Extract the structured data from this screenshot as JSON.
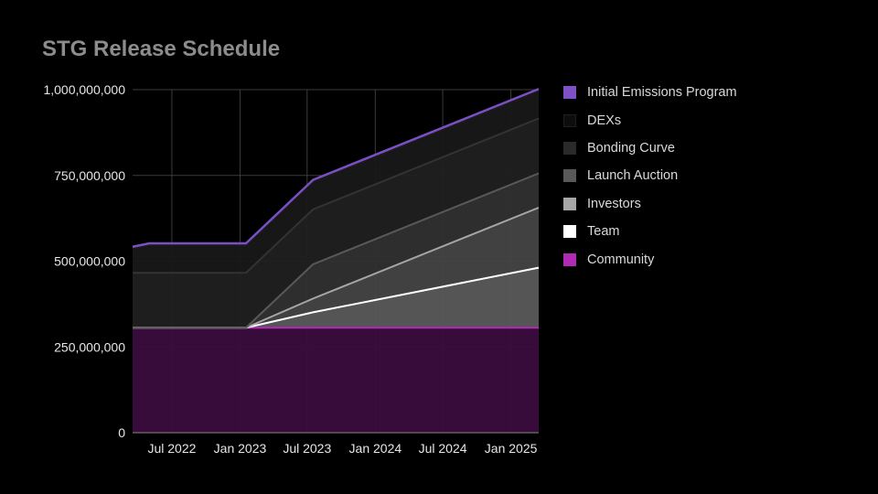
{
  "chart_data": {
    "type": "area",
    "stacked": true,
    "title": "STG Release Schedule",
    "xlabel": "",
    "ylabel": "",
    "x_start": "2022-03-17",
    "x_end": "2025-03-17",
    "x_ticks": [
      {
        "date": "2022-07-01",
        "label": "Jul 2022"
      },
      {
        "date": "2023-01-01",
        "label": "Jan 2023"
      },
      {
        "date": "2023-07-01",
        "label": "Jul 2023"
      },
      {
        "date": "2024-01-01",
        "label": "Jan 2024"
      },
      {
        "date": "2024-07-01",
        "label": "Jul 2024"
      },
      {
        "date": "2025-01-01",
        "label": "Jan 2025"
      }
    ],
    "ylim": [
      0,
      1000000000
    ],
    "y_ticks": [
      {
        "value": 0,
        "label": "0"
      },
      {
        "value": 250000000,
        "label": "250,000,000"
      },
      {
        "value": 500000000,
        "label": "500,000,000"
      },
      {
        "value": 750000000,
        "label": "750,000,000"
      },
      {
        "value": 1000000000,
        "label": "1,000,000,000"
      }
    ],
    "grid": true,
    "legend_position": "right",
    "x": [
      "2022-03-17",
      "2022-05-01",
      "2023-01-17",
      "2023-07-17",
      "2025-03-17"
    ],
    "series": [
      {
        "name": "Community",
        "color": "#3a0d3e",
        "line_color": "#b02ab3",
        "values": [
          306000000,
          306000000,
          306000000,
          306000000,
          306000000
        ]
      },
      {
        "name": "Team",
        "color": "#5a5a5a",
        "line_color": "#ffffff",
        "values": [
          0,
          0,
          0,
          45000000,
          175000000
        ]
      },
      {
        "name": "Investors",
        "color": "#444444",
        "line_color": "#a6a6a6",
        "values": [
          0,
          0,
          0,
          40000000,
          175000000
        ]
      },
      {
        "name": "Launch Auction",
        "color": "#303030",
        "line_color": "#595959",
        "values": [
          0,
          0,
          0,
          100000000,
          100000000
        ]
      },
      {
        "name": "Bonding Curve",
        "color": "#202020",
        "line_color": "#333333",
        "values": [
          160000000,
          160000000,
          160000000,
          160000000,
          160000000
        ]
      },
      {
        "name": "DEXs",
        "color": "#181818",
        "line_color": "#1a1a1a",
        "values": [
          70000000,
          80000000,
          80000000,
          80000000,
          80000000
        ]
      },
      {
        "name": "Initial Emissions Program",
        "color": "#2a1f3c",
        "line_color": "#7c4fc4",
        "values": [
          6000000,
          6000000,
          6000000,
          6000000,
          6000000
        ]
      }
    ],
    "legend": [
      {
        "name": "Initial Emissions Program",
        "color": "#7f51c6",
        "border": "#7f51c6"
      },
      {
        "name": "DEXs",
        "color": "#0d0d0d",
        "border": "#1f1f1f"
      },
      {
        "name": "Bonding Curve",
        "color": "#2a2a2a",
        "border": "#2a2a2a"
      },
      {
        "name": "Launch Auction",
        "color": "#595959",
        "border": "#595959"
      },
      {
        "name": "Investors",
        "color": "#a6a6a6",
        "border": "#a6a6a6"
      },
      {
        "name": "Team",
        "color": "#ffffff",
        "border": "#ffffff"
      },
      {
        "name": "Community",
        "color": "#b02ab3",
        "border": "#b02ab3"
      }
    ],
    "colors": {
      "grid": "#3c3c3c",
      "axis": "#888888",
      "title": "#8c8c8c",
      "tick_text": "#e6e6e6",
      "legend_text": "#d9d9d9"
    }
  }
}
